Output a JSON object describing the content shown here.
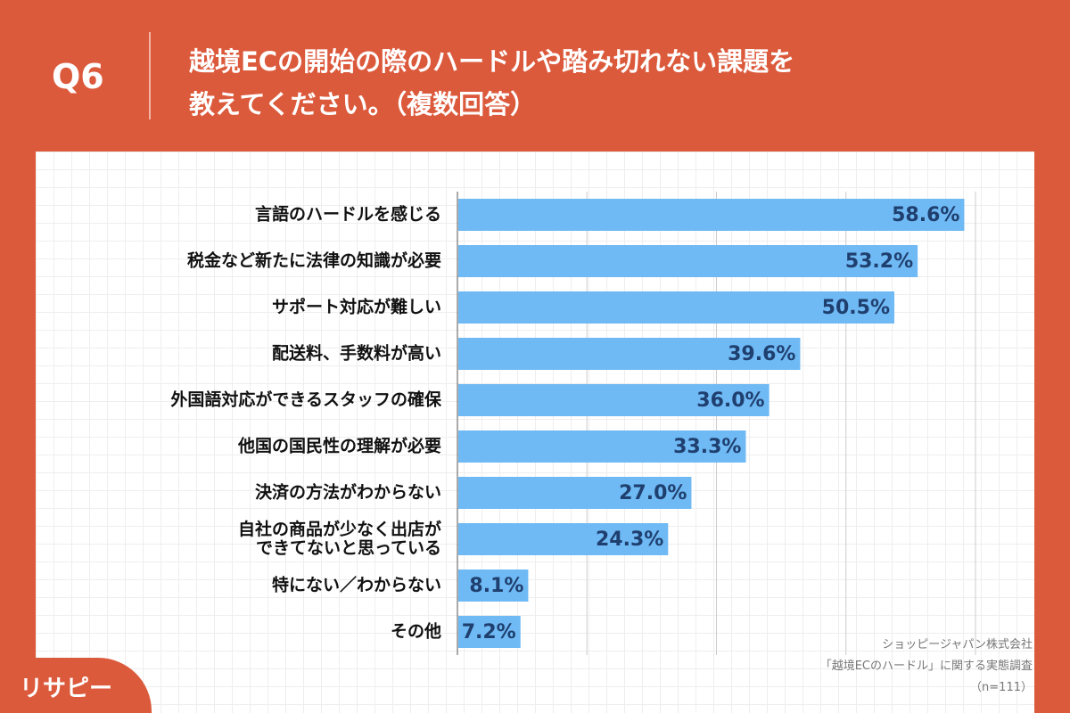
{
  "header": {
    "question": "Q6",
    "title": [
      "越境ECの開始の際のハードルや踏み切れない課題を",
      "教えてください。（複数回答）"
    ]
  },
  "chart_data": {
    "type": "bar",
    "orientation": "horizontal",
    "categories": [
      "言語のハードルを感じる",
      "税金など新たに法律の知識が必要",
      "サポート対応が難しい",
      "配送料、手数料が高い",
      "外国語対応ができるスタッフの確保",
      "他国の国民性の理解が必要",
      "決済の方法がわからない",
      "自社の商品が少なく出店が\nできてないと思っている",
      "特にない／わからない",
      "その他"
    ],
    "values": [
      58.6,
      53.2,
      50.5,
      39.6,
      36.0,
      33.3,
      27.0,
      24.3,
      8.1,
      7.2
    ],
    "value_labels": [
      "58.6%",
      "53.2%",
      "50.5%",
      "39.6%",
      "36.0%",
      "33.3%",
      "27.0%",
      "24.3%",
      "8.1%",
      "7.2%"
    ],
    "color": "#6fb9f4",
    "xlim": [
      0,
      60
    ],
    "xticks": [
      0,
      15,
      30,
      45,
      60
    ],
    "grid": true
  },
  "source": [
    "ショッピージャパン株式会社",
    "「越境ECのハードル」に関する実態調査",
    "（n=111）"
  ],
  "logo": "リサピー"
}
